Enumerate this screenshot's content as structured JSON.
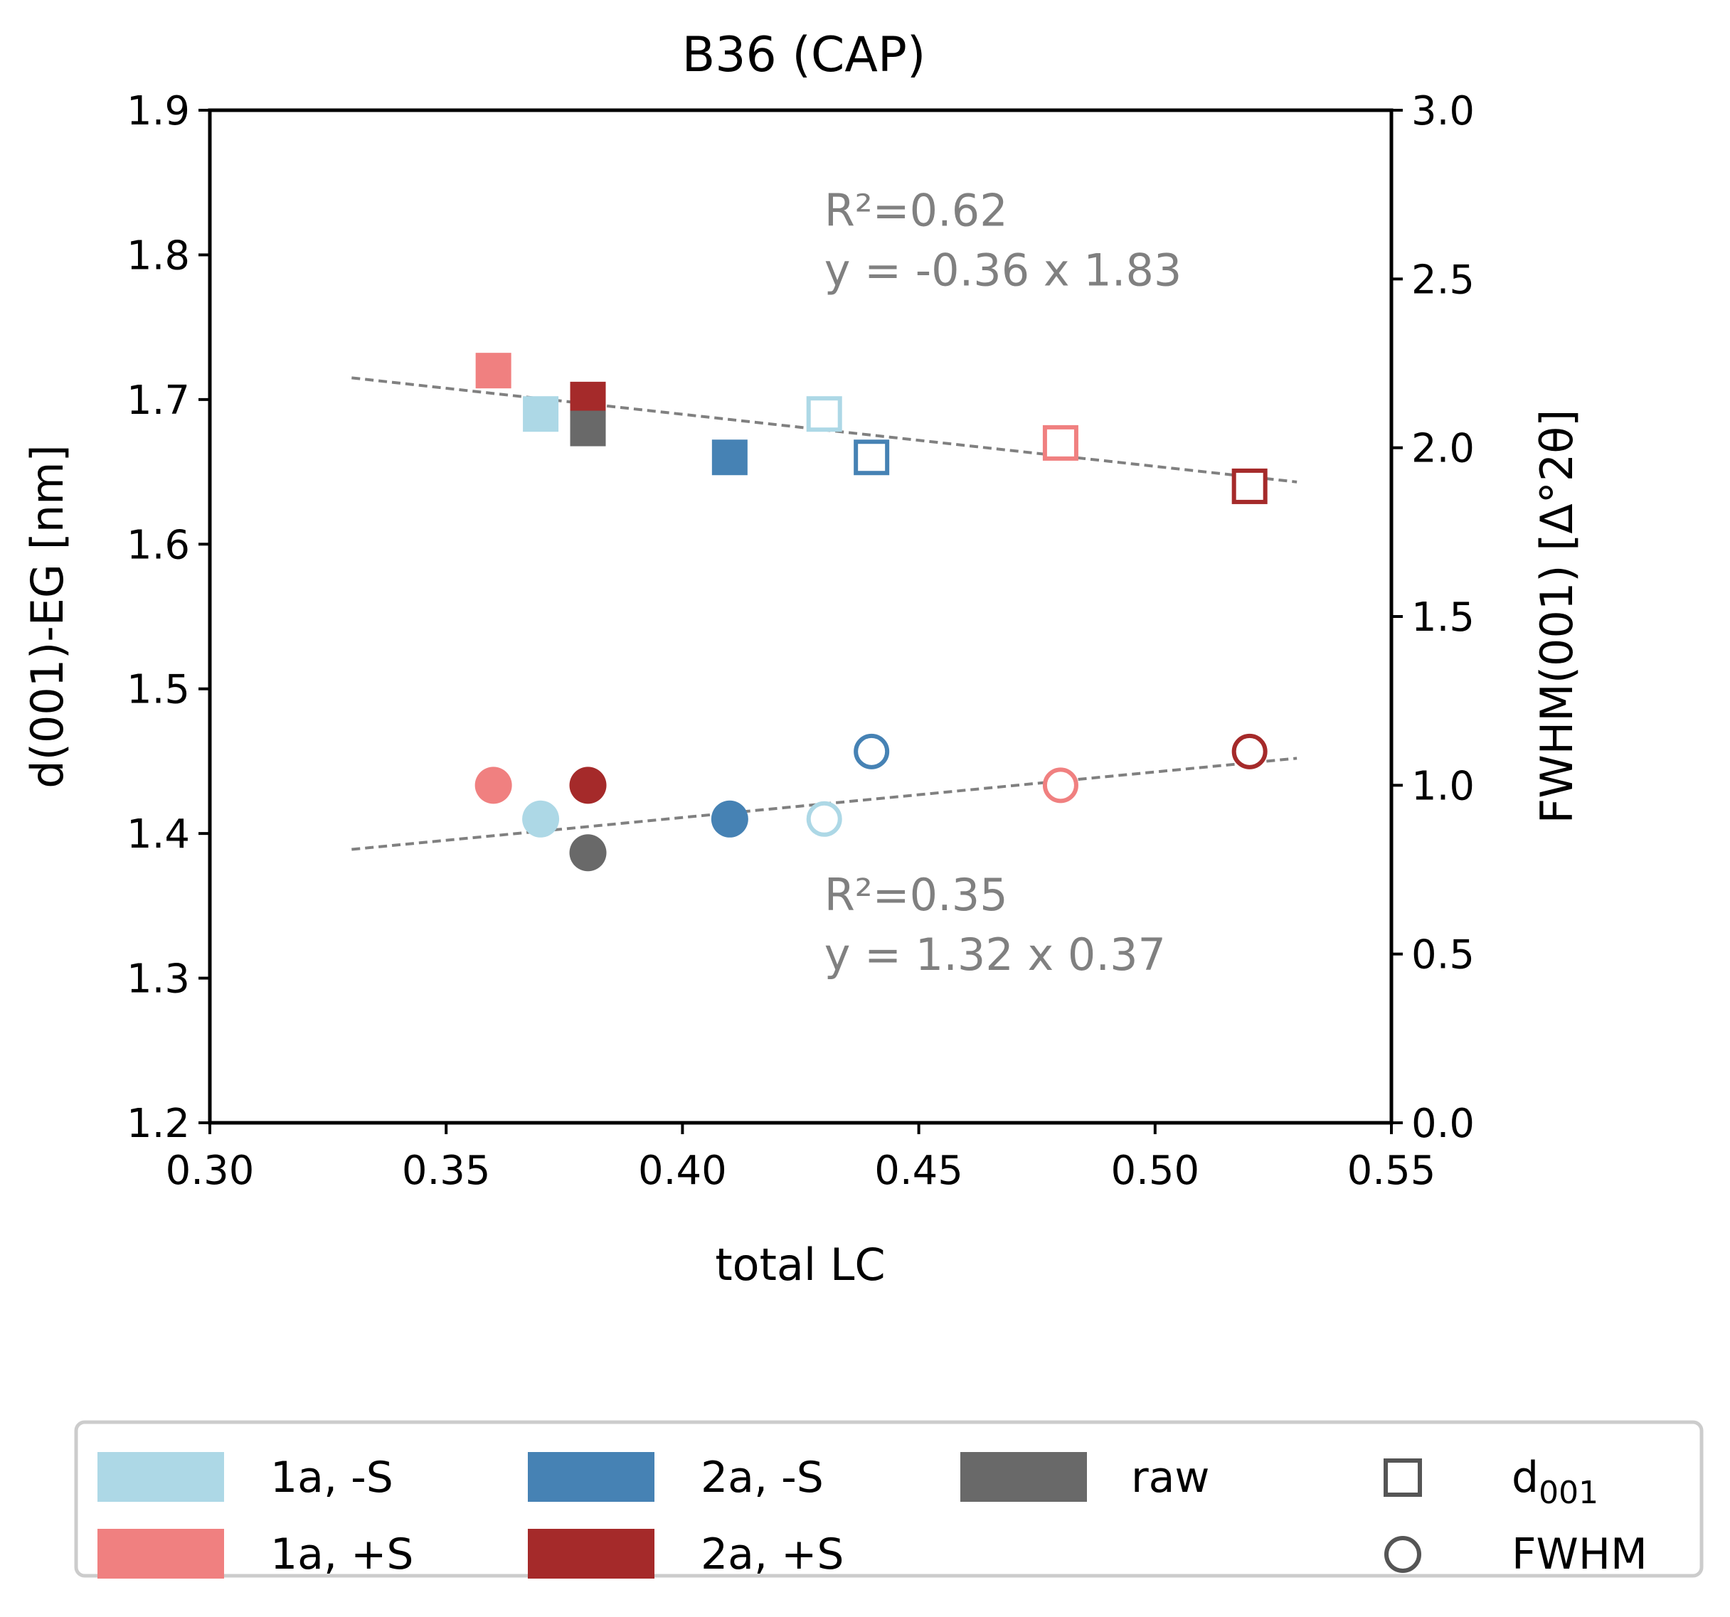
{
  "chart_data": {
    "type": "scatter",
    "title": "B36 (CAP)",
    "xlabel": "total LC",
    "ylabel_left": "d(001)-EG [nm]",
    "ylabel_right": "FWHM(001) [Δ°2θ]",
    "xlim": [
      0.3,
      0.55
    ],
    "ylim_left": [
      1.2,
      1.9
    ],
    "ylim_right": [
      0.0,
      3.0
    ],
    "xticks": [
      "0.30",
      "0.35",
      "0.40",
      "0.45",
      "0.50",
      "0.55"
    ],
    "yticks_left": [
      "1.2",
      "1.3",
      "1.4",
      "1.5",
      "1.6",
      "1.7",
      "1.8",
      "1.9"
    ],
    "yticks_right": [
      "0.0",
      "0.5",
      "1.0",
      "1.5",
      "2.0",
      "2.5",
      "3.0"
    ],
    "grid": false,
    "legend_position": "bottom",
    "series": [
      {
        "name": "1a, -S",
        "color": "#add8e6",
        "d001_filled": [
          {
            "x": 0.37,
            "y": 1.69
          }
        ],
        "d001_open": [
          {
            "x": 0.43,
            "y": 1.69
          }
        ],
        "fwhm_filled": [
          {
            "x": 0.37,
            "y": 0.9
          }
        ],
        "fwhm_open": [
          {
            "x": 0.43,
            "y": 0.9
          }
        ]
      },
      {
        "name": "1a, +S",
        "color": "#f08080",
        "d001_filled": [
          {
            "x": 0.36,
            "y": 1.72
          }
        ],
        "d001_open": [
          {
            "x": 0.48,
            "y": 1.67
          }
        ],
        "fwhm_filled": [
          {
            "x": 0.36,
            "y": 1.0
          }
        ],
        "fwhm_open": [
          {
            "x": 0.48,
            "y": 1.0
          }
        ]
      },
      {
        "name": "2a, -S",
        "color": "#4682b4",
        "d001_filled": [
          {
            "x": 0.41,
            "y": 1.66
          }
        ],
        "d001_open": [
          {
            "x": 0.44,
            "y": 1.66
          }
        ],
        "fwhm_filled": [
          {
            "x": 0.41,
            "y": 0.9
          }
        ],
        "fwhm_open": [
          {
            "x": 0.44,
            "y": 1.1
          }
        ]
      },
      {
        "name": "2a, +S",
        "color": "#a52a2a",
        "d001_filled": [
          {
            "x": 0.38,
            "y": 1.7
          }
        ],
        "d001_open": [
          {
            "x": 0.52,
            "y": 1.64
          }
        ],
        "fwhm_filled": [
          {
            "x": 0.38,
            "y": 1.0
          }
        ],
        "fwhm_open": [
          {
            "x": 0.52,
            "y": 1.1
          }
        ]
      },
      {
        "name": "raw",
        "color": "#696969",
        "d001_filled": [
          {
            "x": 0.38,
            "y": 1.68
          }
        ],
        "d001_open": [],
        "fwhm_filled": [
          {
            "x": 0.38,
            "y": 0.8
          }
        ],
        "fwhm_open": []
      }
    ],
    "marker_legend": [
      {
        "label_main": "d",
        "label_sub": "001",
        "shape": "square"
      },
      {
        "label_main": "FWHM",
        "label_sub": "",
        "shape": "circle"
      }
    ],
    "fits": [
      {
        "axis": "left",
        "x": [
          0.33,
          0.53
        ],
        "y": [
          1.715,
          1.643
        ],
        "color": "#808080",
        "r2_text": "R²=0.62",
        "eq_text": "y = -0.36 x 1.83",
        "label_x": 0.43,
        "label_y": 1.82
      },
      {
        "axis": "right",
        "x": [
          0.33,
          0.53
        ],
        "y": [
          0.81,
          1.08
        ],
        "color": "#808080",
        "r2_text": "R²=0.35",
        "eq_text": "y = 1.32 x 0.37",
        "label_x": 0.43,
        "label_y": 0.63
      }
    ]
  }
}
